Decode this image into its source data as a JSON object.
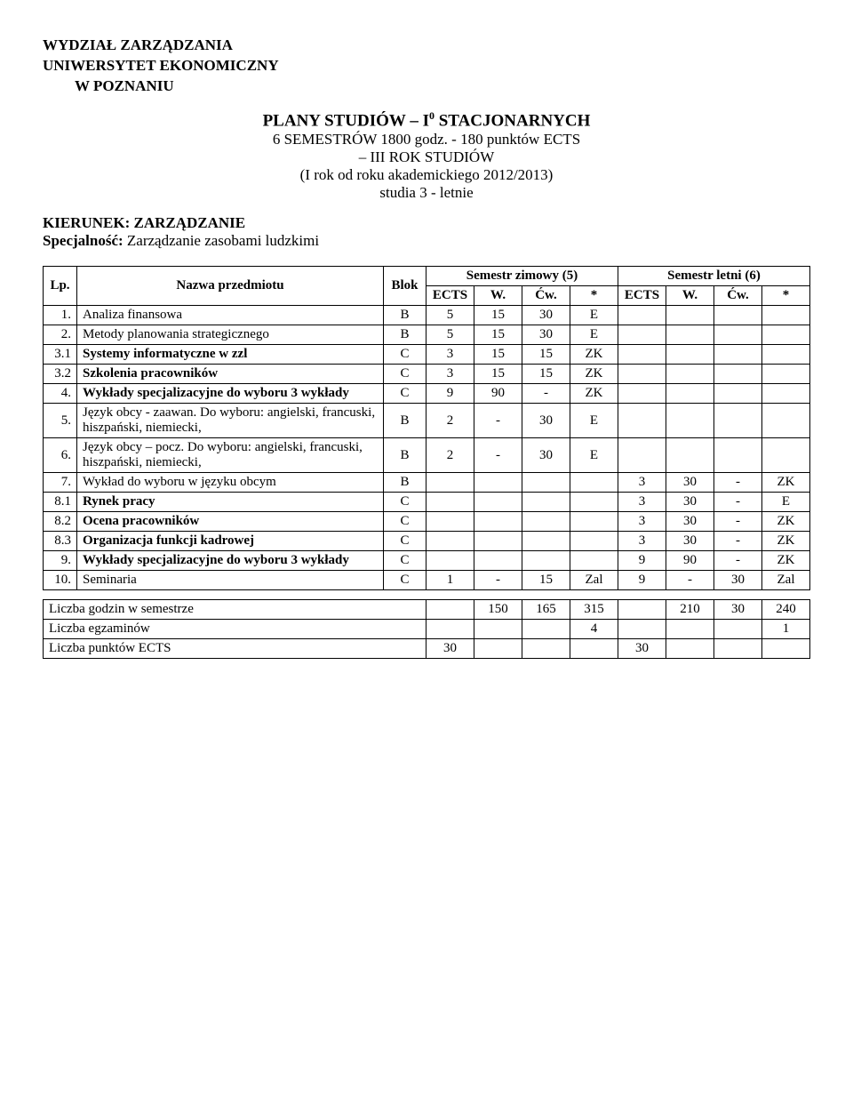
{
  "header": {
    "line1": "WYDZIAŁ ZARZĄDZANIA",
    "line2": "UNIWERSYTET EKONOMICZNY",
    "line3": "W POZNANIU"
  },
  "centerBlock": {
    "planTitle_before": "PLANY STUDIÓW – I",
    "planTitle_sup": "0",
    "planTitle_after": " STACJONARNYCH",
    "line2": "6 SEMESTRÓW 1800 godz. - 180 punktów ECTS",
    "line3": "– III ROK STUDIÓW",
    "line4": "(I rok od roku akademickiego 2012/2013)",
    "line5": "studia 3 - letnie"
  },
  "kierunek": {
    "label": "KIERUNEK:",
    "value": "ZARZĄDZANIE"
  },
  "specjalnosc": {
    "label": "Specjalność:",
    "value": "Zarządzanie zasobami ludzkimi"
  },
  "tableHeaders": {
    "lp": "Lp.",
    "name": "Nazwa przedmiotu",
    "blok": "Blok",
    "semZimowy": "Semestr zimowy (5)",
    "semLetni": "Semestr letni (6)",
    "ects": "ECTS",
    "w": "W.",
    "cw": "Ćw.",
    "star": "*"
  },
  "rows": [
    {
      "lp": "1.",
      "name": "Analiza finansowa",
      "bold": false,
      "blok": "B",
      "z": [
        "5",
        "15",
        "30",
        "E"
      ],
      "l": [
        "",
        "",
        "",
        ""
      ]
    },
    {
      "lp": "2.",
      "name": "Metody planowania strategicznego",
      "bold": false,
      "blok": "B",
      "z": [
        "5",
        "15",
        "30",
        "E"
      ],
      "l": [
        "",
        "",
        "",
        ""
      ]
    },
    {
      "lp": "3.1",
      "name": "Systemy informatyczne w zzl",
      "bold": true,
      "blok": "C",
      "z": [
        "3",
        "15",
        "15",
        "ZK"
      ],
      "l": [
        "",
        "",
        "",
        ""
      ]
    },
    {
      "lp": "3.2",
      "name": "Szkolenia pracowników",
      "bold": true,
      "blok": "C",
      "z": [
        "3",
        "15",
        "15",
        "ZK"
      ],
      "l": [
        "",
        "",
        "",
        ""
      ]
    },
    {
      "lp": "4.",
      "name": "Wykłady specjalizacyjne do wyboru 3 wykłady",
      "bold": true,
      "blok": "C",
      "z": [
        "9",
        "90",
        "-",
        "ZK"
      ],
      "l": [
        "",
        "",
        "",
        ""
      ]
    },
    {
      "lp": "5.",
      "name": "Język obcy - zaawan. Do wyboru: angielski, francuski, hiszpański, niemiecki,",
      "bold": false,
      "blok": "B",
      "z": [
        "2",
        "-",
        "30",
        "E"
      ],
      "l": [
        "",
        "",
        "",
        ""
      ]
    },
    {
      "lp": "6.",
      "name": "Język obcy – pocz. Do wyboru: angielski, francuski, hiszpański, niemiecki,",
      "bold": false,
      "blok": "B",
      "z": [
        "2",
        "-",
        "30",
        "E"
      ],
      "l": [
        "",
        "",
        "",
        ""
      ]
    },
    {
      "lp": "7.",
      "name": "Wykład do wyboru w języku obcym",
      "bold": false,
      "blok": "B",
      "z": [
        "",
        "",
        "",
        ""
      ],
      "l": [
        "3",
        "30",
        "-",
        "ZK"
      ]
    },
    {
      "lp": "8.1",
      "name": "Rynek pracy",
      "bold": true,
      "blok": "C",
      "z": [
        "",
        "",
        "",
        ""
      ],
      "l": [
        "3",
        "30",
        "-",
        "E"
      ]
    },
    {
      "lp": "8.2",
      "name": "Ocena pracowników",
      "bold": true,
      "blok": "C",
      "z": [
        "",
        "",
        "",
        ""
      ],
      "l": [
        "3",
        "30",
        "-",
        "ZK"
      ]
    },
    {
      "lp": "8.3",
      "name": "Organizacja funkcji kadrowej",
      "bold": true,
      "blok": "C",
      "z": [
        "",
        "",
        "",
        ""
      ],
      "l": [
        "3",
        "30",
        "-",
        "ZK"
      ]
    },
    {
      "lp": "9.",
      "name": "Wykłady specjalizacyjne do wyboru 3 wykłady",
      "bold": true,
      "blok": "C",
      "z": [
        "",
        "",
        "",
        ""
      ],
      "l": [
        "9",
        "90",
        "-",
        "ZK"
      ]
    },
    {
      "lp": "10.",
      "name": "Seminaria",
      "bold": false,
      "blok": "C",
      "z": [
        "1",
        "-",
        "15",
        "Zal"
      ],
      "l": [
        "9",
        "-",
        "30",
        "Zal"
      ]
    }
  ],
  "summary": {
    "rows": [
      {
        "label": "Liczba godzin w semestrze",
        "z": [
          "",
          "150",
          "165",
          "315"
        ],
        "l": [
          "",
          "210",
          "30",
          "240"
        ]
      },
      {
        "label": "Liczba egzaminów",
        "z": [
          "",
          "",
          "",
          "4"
        ],
        "l": [
          "",
          "",
          "",
          "1"
        ]
      },
      {
        "label": "Liczba punktów ECTS",
        "z": [
          "30",
          "",
          "",
          ""
        ],
        "l": [
          "30",
          "",
          "",
          ""
        ]
      }
    ]
  },
  "colors": {
    "text": "#000000",
    "background": "#ffffff",
    "border": "#000000"
  }
}
